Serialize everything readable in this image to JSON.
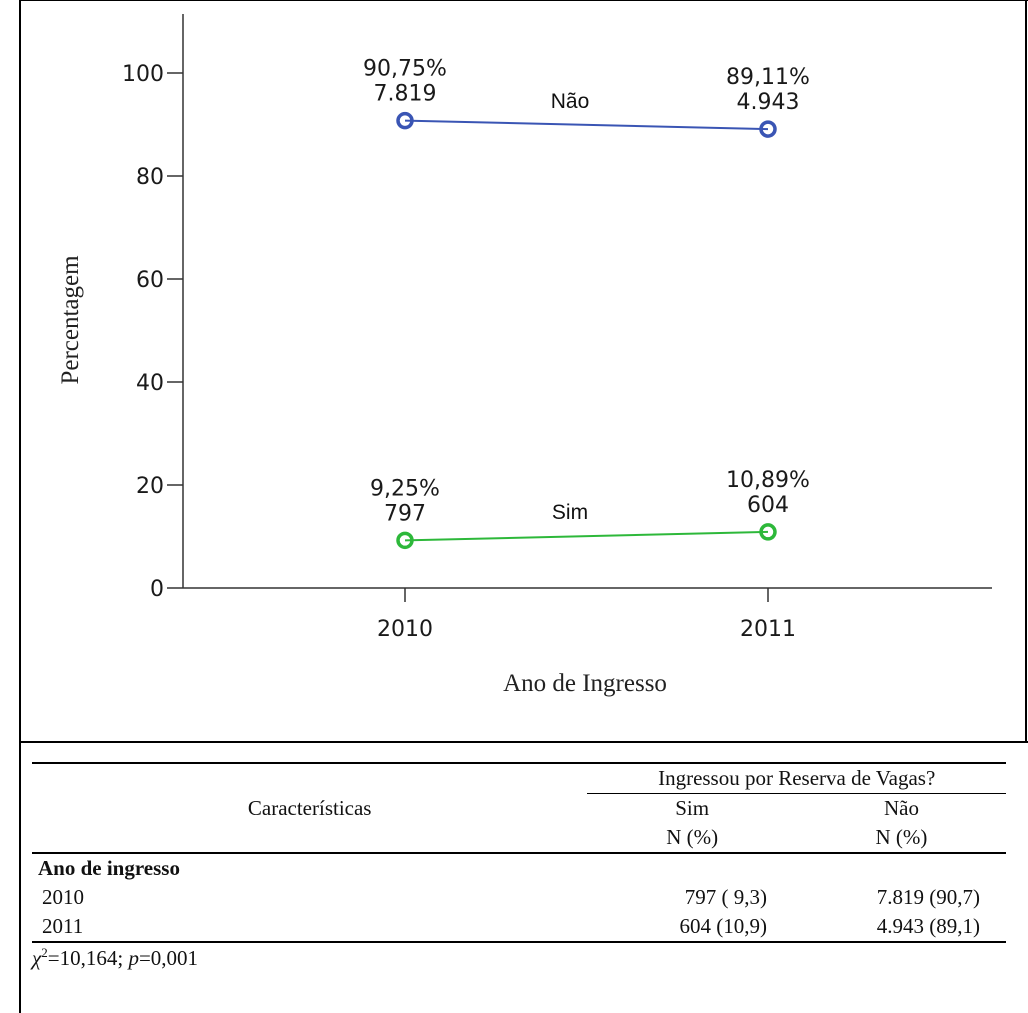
{
  "chart_data": {
    "type": "line",
    "x": [
      "2010",
      "2011"
    ],
    "series": [
      {
        "name": "Não",
        "values": [
          90.75,
          89.11
        ],
        "labels_pct": [
          "90,75%",
          "89,11%"
        ],
        "labels_n": [
          "7.819",
          "4.943"
        ],
        "color": "#3a55b4"
      },
      {
        "name": "Sim",
        "values": [
          9.25,
          10.89
        ],
        "labels_pct": [
          "9,25%",
          "10,89%"
        ],
        "labels_n": [
          "797",
          "604"
        ],
        "color": "#2db83a"
      }
    ],
    "xlabel": "Ano de Ingresso",
    "ylabel": "Percentagem",
    "yticks": [
      "0",
      "20",
      "40",
      "60",
      "80",
      "100"
    ],
    "ylim": [
      0,
      110
    ]
  },
  "table": {
    "group_header": "Ingressou por Reserva de Vagas?",
    "row_header": "Características",
    "col_sim": "Sim",
    "col_nao": "Não",
    "col_sub_sim": "N (%)",
    "col_sub_nao": "N (%)",
    "section": "Ano de ingresso",
    "rows": [
      {
        "label": "2010",
        "sim": "797 ( 9,3)",
        "nao": "7.819 (90,7)"
      },
      {
        "label": "2011",
        "sim": "604 (10,9)",
        "nao": "4.943 (89,1)"
      }
    ]
  },
  "footnote": {
    "chi": "χ",
    "sup": "2",
    "rest1": "=10,164; ",
    "p": "p",
    "rest2": "=0,001"
  }
}
